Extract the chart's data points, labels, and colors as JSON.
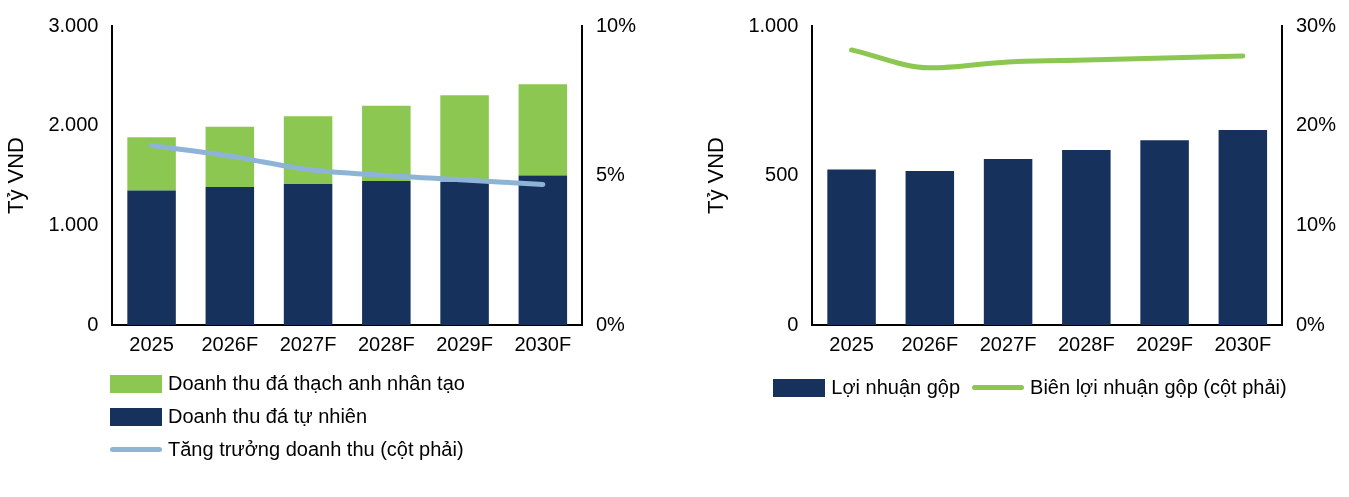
{
  "chart_data": [
    {
      "type": "bar",
      "stacked": true,
      "categories": [
        "2025",
        "2026F",
        "2027F",
        "2028F",
        "2029F",
        "2030F"
      ],
      "ylabel": "Tỷ VND",
      "ylim": [
        0,
        3000
      ],
      "yticks": [
        {
          "value": 0,
          "label": "0"
        },
        {
          "value": 1000,
          "label": "1.000"
        },
        {
          "value": 2000,
          "label": "2.000"
        },
        {
          "value": 3000,
          "label": "3.000"
        }
      ],
      "y2lim": [
        0,
        10
      ],
      "y2ticks": [
        {
          "value": 0,
          "label": "0%"
        },
        {
          "value": 5,
          "label": "5%"
        },
        {
          "value": 10,
          "label": "10%"
        }
      ],
      "grid": false,
      "legend": "bottom",
      "marker": "none",
      "series": [
        {
          "name": "Doanh thu đá tự nhiên",
          "color": "#16325c",
          "values": [
            1350,
            1385,
            1415,
            1445,
            1435,
            1500
          ]
        },
        {
          "name": "Doanh thu đá thạch anh nhân tạo",
          "color": "#8cc751",
          "values": [
            535,
            605,
            680,
            755,
            870,
            915
          ]
        },
        {
          "name": "Tăng trưởng doanh thu (cột phải)",
          "type": "line",
          "axis": "y2",
          "color": "#8db4d6",
          "values": [
            6.0,
            5.65,
            5.2,
            5.0,
            4.85,
            4.7
          ]
        }
      ]
    },
    {
      "type": "bar",
      "categories": [
        "2025",
        "2026F",
        "2027F",
        "2028F",
        "2029F",
        "2030F"
      ],
      "ylabel": "Tỷ VND",
      "ylim": [
        0,
        1000
      ],
      "yticks": [
        {
          "value": 0,
          "label": "0"
        },
        {
          "value": 500,
          "label": "500"
        },
        {
          "value": 1000,
          "label": "1.000"
        }
      ],
      "y2lim": [
        0,
        30
      ],
      "y2ticks": [
        {
          "value": 0,
          "label": "0%"
        },
        {
          "value": 10,
          "label": "10%"
        },
        {
          "value": 20,
          "label": "20%"
        },
        {
          "value": 30,
          "label": "30%"
        }
      ],
      "grid": false,
      "legend": "bottom",
      "marker": "none",
      "series": [
        {
          "name": "Lợi nhuận gộp",
          "color": "#16325c",
          "values": [
            520,
            515,
            555,
            585,
            618,
            652
          ]
        },
        {
          "name": "Biên lợi nhuận gộp (cột phải)",
          "type": "line",
          "axis": "y2",
          "color": "#8cc751",
          "values": [
            27.6,
            25.8,
            26.4,
            26.6,
            26.8,
            27.0
          ]
        }
      ]
    }
  ]
}
